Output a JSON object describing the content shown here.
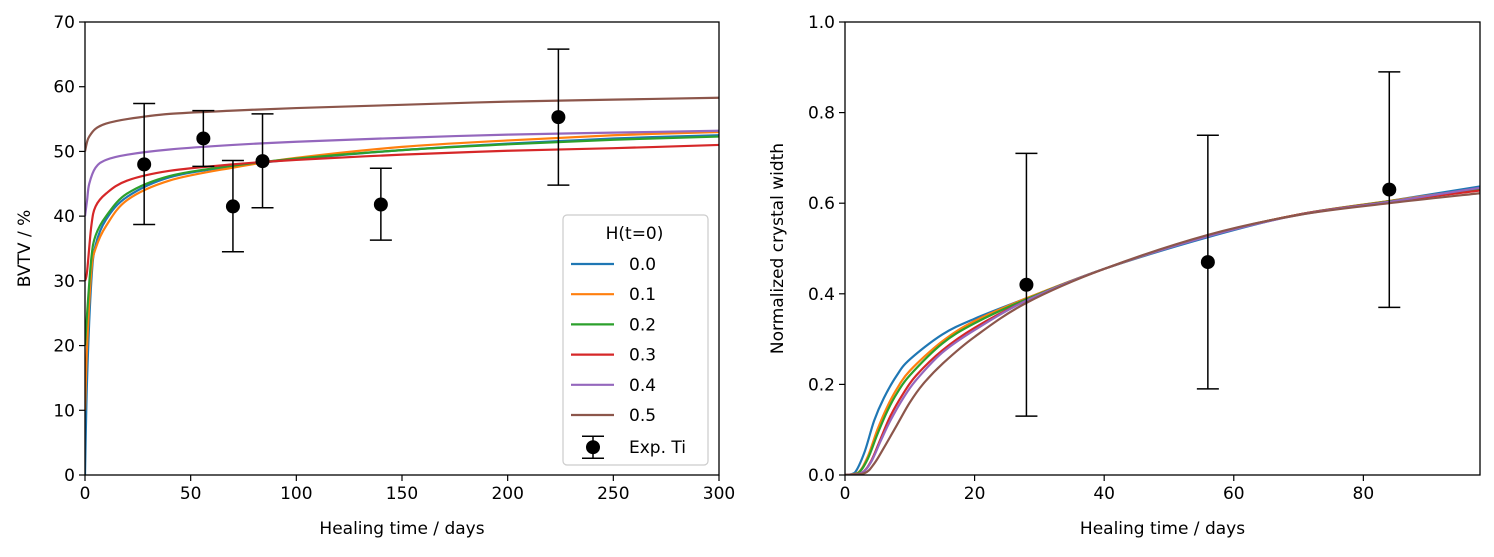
{
  "chart_data": [
    {
      "type": "line",
      "xlabel": "Healing time / days",
      "ylabel": "BVTV / %",
      "xlim": [
        0,
        300
      ],
      "ylim": [
        0,
        70
      ],
      "xticks": [
        "0",
        "50",
        "100",
        "150",
        "200",
        "250",
        "300"
      ],
      "yticks": [
        "0",
        "10",
        "20",
        "30",
        "40",
        "50",
        "60",
        "70"
      ],
      "grid": false,
      "legend": {
        "title": "H(t=0)",
        "placement": "lower-right"
      },
      "series": [
        {
          "name": "0.0",
          "color": "#1f77b4",
          "x": [
            0,
            1,
            3,
            5,
            10,
            20,
            40,
            70,
            100,
            150,
            200,
            250,
            300
          ],
          "y": [
            0,
            15,
            30,
            35.5,
            39.5,
            43,
            46,
            47.7,
            48.8,
            50.2,
            51.2,
            52.0,
            52.5
          ]
        },
        {
          "name": "0.1",
          "color": "#ff7f0e",
          "x": [
            0,
            1,
            3,
            5,
            10,
            20,
            40,
            70,
            100,
            150,
            200,
            250,
            300
          ],
          "y": [
            10,
            20,
            31.5,
            35,
            38.5,
            42.5,
            45.5,
            47.5,
            49,
            50.7,
            51.7,
            52.5,
            53
          ]
        },
        {
          "name": "0.2",
          "color": "#2ca02c",
          "x": [
            0,
            1,
            3,
            5,
            10,
            20,
            40,
            70,
            100,
            150,
            200,
            250,
            300
          ],
          "y": [
            20,
            25,
            33.5,
            37,
            40,
            43.5,
            46.2,
            47.8,
            48.9,
            50.2,
            51.1,
            51.8,
            52.3
          ]
        },
        {
          "name": "0.3",
          "color": "#d62728",
          "x": [
            0,
            1,
            3,
            5,
            10,
            20,
            40,
            70,
            100,
            150,
            200,
            250,
            300
          ],
          "y": [
            30,
            31.5,
            38.5,
            41.5,
            43.5,
            45.5,
            47,
            48,
            48.7,
            49.5,
            50.1,
            50.5,
            51
          ]
        },
        {
          "name": "0.4",
          "color": "#9467bd",
          "x": [
            0,
            1,
            2,
            5,
            10,
            20,
            40,
            70,
            100,
            150,
            200,
            250,
            300
          ],
          "y": [
            40,
            42.5,
            45,
            47.5,
            48.7,
            49.5,
            50.3,
            51,
            51.5,
            52.1,
            52.6,
            52.9,
            53.2
          ]
        },
        {
          "name": "0.5",
          "color": "#8c564b",
          "x": [
            0,
            1,
            2,
            5,
            10,
            20,
            40,
            70,
            100,
            150,
            200,
            250,
            300
          ],
          "y": [
            50,
            51.5,
            52.3,
            53.5,
            54.3,
            55,
            55.8,
            56.3,
            56.7,
            57.2,
            57.7,
            58.0,
            58.3
          ]
        }
      ],
      "points": {
        "name": "Exp. Ti",
        "color": "#000000",
        "x": [
          28,
          56,
          70,
          84,
          140,
          224
        ],
        "y": [
          48.0,
          52.0,
          41.5,
          48.5,
          41.8,
          55.3
        ],
        "err_low": [
          38.7,
          47.7,
          34.5,
          41.3,
          36.3,
          44.8
        ],
        "err_high": [
          57.4,
          56.3,
          48.6,
          55.8,
          47.4,
          65.8
        ]
      }
    },
    {
      "type": "line",
      "xlabel": "Healing time / days",
      "ylabel": "Normalized crystal width",
      "xlim": [
        0,
        98
      ],
      "ylim": [
        0,
        1.0
      ],
      "xticks": [
        "0",
        "20",
        "40",
        "60",
        "80"
      ],
      "xtick_values": [
        0,
        20,
        40,
        60,
        80
      ],
      "yticks": [
        "0.0",
        "0.2",
        "0.4",
        "0.6",
        "0.8",
        "1.0"
      ],
      "grid": false,
      "series": [
        {
          "color": "#1f77b4",
          "x": [
            0,
            1.5,
            3,
            4.5,
            6,
            8,
            10,
            15,
            20,
            28,
            40,
            56,
            70,
            84,
            98
          ],
          "y": [
            0,
            0.005,
            0.05,
            0.12,
            0.17,
            0.22,
            0.255,
            0.31,
            0.345,
            0.39,
            0.455,
            0.525,
            0.575,
            0.605,
            0.637
          ]
        },
        {
          "color": "#ff7f0e",
          "x": [
            0,
            2,
            3.5,
            5,
            6.5,
            8,
            10,
            15,
            20,
            28,
            40,
            56,
            70,
            84,
            98
          ],
          "y": [
            0,
            0.005,
            0.04,
            0.1,
            0.15,
            0.19,
            0.23,
            0.295,
            0.34,
            0.39,
            0.455,
            0.528,
            0.575,
            0.605,
            0.632
          ]
        },
        {
          "color": "#2ca02c",
          "x": [
            0,
            2,
            3.5,
            5,
            6.5,
            8,
            10,
            15,
            20,
            28,
            40,
            56,
            70,
            84,
            98
          ],
          "y": [
            0,
            0.004,
            0.035,
            0.09,
            0.14,
            0.18,
            0.22,
            0.29,
            0.335,
            0.388,
            0.455,
            0.528,
            0.575,
            0.604,
            0.63
          ]
        },
        {
          "color": "#d62728",
          "x": [
            0,
            2.5,
            4,
            5.5,
            7,
            9,
            11,
            15,
            20,
            28,
            40,
            56,
            70,
            84,
            98
          ],
          "y": [
            0,
            0.004,
            0.03,
            0.08,
            0.13,
            0.18,
            0.22,
            0.275,
            0.325,
            0.385,
            0.455,
            0.528,
            0.575,
            0.603,
            0.628
          ]
        },
        {
          "color": "#9467bd",
          "x": [
            0,
            2.5,
            4,
            5.5,
            7,
            9,
            11,
            15,
            20,
            28,
            40,
            56,
            70,
            84,
            98
          ],
          "y": [
            0,
            0.004,
            0.028,
            0.075,
            0.12,
            0.17,
            0.21,
            0.27,
            0.32,
            0.385,
            0.455,
            0.527,
            0.574,
            0.603,
            0.634
          ]
        },
        {
          "color": "#8c564b",
          "x": [
            0,
            3,
            4.5,
            6,
            8,
            10,
            12,
            15,
            20,
            28,
            40,
            56,
            70,
            84,
            98
          ],
          "y": [
            0,
            0.004,
            0.025,
            0.06,
            0.11,
            0.16,
            0.2,
            0.245,
            0.305,
            0.38,
            0.455,
            0.53,
            0.574,
            0.6,
            0.622
          ]
        }
      ],
      "points": {
        "color": "#000000",
        "x": [
          28,
          56,
          84
        ],
        "y": [
          0.42,
          0.47,
          0.63
        ],
        "err_low": [
          0.13,
          0.19,
          0.37
        ],
        "err_high": [
          0.71,
          0.75,
          0.89
        ]
      }
    }
  ]
}
